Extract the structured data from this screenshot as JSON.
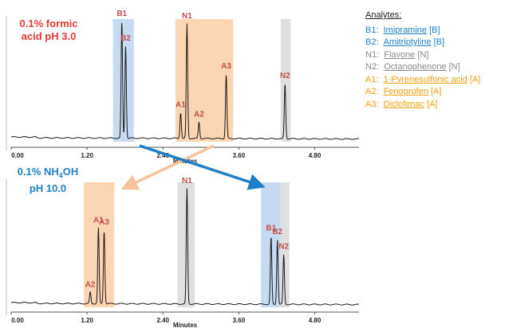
{
  "conditions": {
    "top": {
      "line1": "0.1% formic",
      "line2": "acid pH 3.0",
      "color": "#e53935"
    },
    "bottom": {
      "line1_main": "0.1% NH",
      "line1_sub": "4",
      "line1_end": "OH",
      "line2": "pH 10.0",
      "color": "#1f7fc4"
    }
  },
  "legend": {
    "heading": "Analytes:",
    "items": [
      {
        "code": "B1:",
        "name": "Imipramine",
        "tag": "[B]",
        "color": "#1f7fc4"
      },
      {
        "code": "B2:",
        "name": "Amitriptyline",
        "tag": "[B]",
        "color": "#1f7fc4"
      },
      {
        "code": "N1:",
        "name": "Flavone",
        "tag": "[N]",
        "color": "#8a8a8a"
      },
      {
        "code": "N2:",
        "name": "Octanophenone",
        "tag": "[N]",
        "color": "#8a8a8a"
      },
      {
        "code": "A1:",
        "name": "1-Pyrenesulfonic acid",
        "tag": "[A]",
        "color": "#f2a20f"
      },
      {
        "code": "A2:",
        "name": "Fenoprofen",
        "tag": "[A]",
        "color": "#f2a20f"
      },
      {
        "code": "A3:",
        "name": "Diclofenac",
        "tag": "[A]",
        "color": "#f2a20f"
      }
    ]
  },
  "colors": {
    "basic_band": "#bcd5ee",
    "neutral_band": "#d9d9d9",
    "acidic_band": "#fbcea4",
    "peak_label": "#c0504d",
    "trace": "#1a1a1a",
    "arrow_acid": "#f6c39a",
    "arrow_base": "#1f7fc4"
  },
  "chart_data": [
    {
      "type": "line",
      "title": "",
      "xlabel": "Minutes",
      "ylabel": "",
      "xlim": [
        0,
        5.5
      ],
      "xticks": [
        0.0,
        1.2,
        2.4,
        3.6,
        4.8
      ],
      "xtick_labels": [
        "0.00",
        "1.20",
        "2.40",
        "3.60",
        "4.80"
      ],
      "peaks": [
        {
          "label": "B1",
          "x": 1.75,
          "height": 1.0
        },
        {
          "label": "B2",
          "x": 1.81,
          "height": 0.79
        },
        {
          "label": "A1",
          "x": 2.68,
          "height": 0.22
        },
        {
          "label": "N1",
          "x": 2.78,
          "height": 0.98
        },
        {
          "label": "A2",
          "x": 2.97,
          "height": 0.14
        },
        {
          "label": "A3",
          "x": 3.4,
          "height": 0.55
        },
        {
          "label": "N2",
          "x": 4.33,
          "height": 0.47
        }
      ],
      "highlight_regions": [
        {
          "group": "basic",
          "x_range": [
            1.61,
            1.94
          ]
        },
        {
          "group": "acidic",
          "x_range": [
            2.6,
            3.51
          ]
        },
        {
          "group": "neutral",
          "x_range": [
            4.26,
            4.42
          ]
        }
      ]
    },
    {
      "type": "line",
      "title": "",
      "xlabel": "Minutes",
      "ylabel": "",
      "xlim": [
        0,
        5.5
      ],
      "xticks": [
        0.0,
        1.2,
        2.4,
        3.6,
        4.8
      ],
      "xtick_labels": [
        "0.00",
        "1.20",
        "2.40",
        "3.60",
        "4.80"
      ],
      "peaks": [
        {
          "label": "A2",
          "x": 1.25,
          "height": 0.1
        },
        {
          "label": "A1",
          "x": 1.38,
          "height": 0.66
        },
        {
          "label": "A3",
          "x": 1.47,
          "height": 0.64
        },
        {
          "label": "N1",
          "x": 2.78,
          "height": 1.0
        },
        {
          "label": "B1",
          "x": 4.11,
          "height": 0.59
        },
        {
          "label": "B2",
          "x": 4.21,
          "height": 0.56
        },
        {
          "label": "N2",
          "x": 4.31,
          "height": 0.43
        }
      ],
      "highlight_regions": [
        {
          "group": "acidic",
          "x_range": [
            1.15,
            1.63
          ]
        },
        {
          "group": "neutral",
          "x_range": [
            2.63,
            2.9
          ]
        },
        {
          "group": "basic",
          "x_range": [
            3.95,
            4.26
          ]
        },
        {
          "group": "neutral",
          "x_range": [
            4.26,
            4.4
          ]
        }
      ]
    }
  ]
}
